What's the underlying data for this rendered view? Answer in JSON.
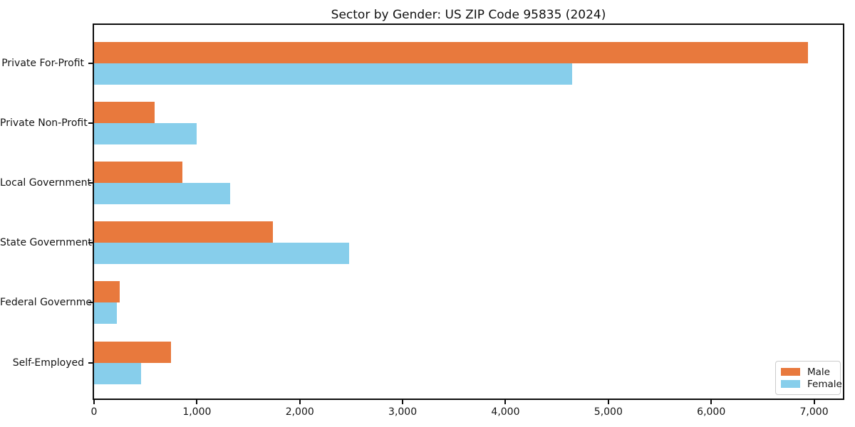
{
  "title": "Sector by Gender: US ZIP Code 95835 (2024)",
  "chart_data": {
    "type": "bar",
    "orientation": "horizontal",
    "title": "Sector by Gender: US ZIP Code 95835 (2024)",
    "categories": [
      "Private For-Profit",
      "Private Non-Profit",
      "Local Government",
      "State Government",
      "Federal Government",
      "Self-Employed"
    ],
    "series": [
      {
        "name": "Male",
        "color": "#E8793D",
        "values": [
          6940,
          590,
          860,
          1740,
          250,
          750
        ]
      },
      {
        "name": "Female",
        "color": "#87CEEB",
        "values": [
          4650,
          1000,
          1320,
          2480,
          220,
          460
        ]
      }
    ],
    "xlim": [
      0,
      7280
    ],
    "x_ticks": [
      0,
      1000,
      2000,
      3000,
      4000,
      5000,
      6000,
      7000
    ],
    "x_tick_labels": [
      "0",
      "1,000",
      "2,000",
      "3,000",
      "4,000",
      "5,000",
      "6,000",
      "7,000"
    ],
    "xlabel": "",
    "ylabel": "",
    "grid": false,
    "legend_position": "lower right"
  }
}
